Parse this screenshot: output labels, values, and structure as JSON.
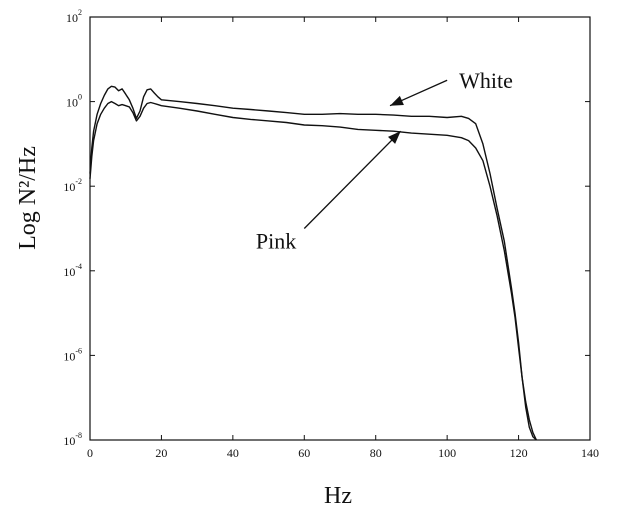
{
  "chart_data": {
    "type": "line",
    "title": "",
    "xlabel": "Hz",
    "ylabel": "Log N²/Hz",
    "xlim": [
      0,
      140
    ],
    "ylim": [
      1e-08,
      100
    ],
    "y_scale": "log",
    "x_ticks": [
      "0",
      "20",
      "40",
      "60",
      "80",
      "100",
      "120",
      "140"
    ],
    "y_ticks": [
      {
        "base": "10",
        "exp": "-8",
        "value": 1e-08
      },
      {
        "base": "10",
        "exp": "-6",
        "value": 1e-06
      },
      {
        "base": "10",
        "exp": "-4",
        "value": 0.0001
      },
      {
        "base": "10",
        "exp": "-2",
        "value": 0.01
      },
      {
        "base": "10",
        "exp": "0",
        "value": 1
      },
      {
        "base": "10",
        "exp": "2",
        "value": 100
      }
    ],
    "grid": false,
    "series": [
      {
        "name": "White",
        "x": [
          0,
          0.5,
          1,
          2,
          3,
          4,
          5,
          6,
          7,
          8,
          9,
          10,
          11,
          12,
          13,
          14,
          15,
          16,
          17,
          18,
          19,
          20,
          25,
          30,
          35,
          40,
          45,
          50,
          55,
          60,
          65,
          70,
          75,
          80,
          85,
          90,
          95,
          100,
          104,
          106,
          108,
          110,
          112,
          114,
          116,
          118,
          119,
          120,
          121,
          122,
          123,
          124,
          125
        ],
        "y": [
          0.02,
          0.08,
          0.2,
          0.5,
          0.9,
          1.4,
          2.0,
          2.3,
          2.2,
          1.8,
          2.0,
          1.5,
          1.1,
          0.7,
          0.4,
          0.6,
          1.3,
          1.9,
          2.0,
          1.6,
          1.3,
          1.1,
          1.0,
          0.9,
          0.8,
          0.7,
          0.65,
          0.6,
          0.55,
          0.5,
          0.5,
          0.52,
          0.5,
          0.5,
          0.48,
          0.45,
          0.45,
          0.42,
          0.45,
          0.4,
          0.3,
          0.1,
          0.02,
          0.003,
          0.0005,
          4e-05,
          1e-05,
          2e-06,
          3e-07,
          6e-08,
          2e-08,
          1.2e-08,
          1e-08
        ]
      },
      {
        "name": "Pink",
        "x": [
          0,
          0.5,
          1,
          2,
          3,
          4,
          5,
          6,
          7,
          8,
          9,
          10,
          11,
          12,
          13,
          14,
          15,
          16,
          17,
          18,
          19,
          20,
          25,
          30,
          35,
          40,
          45,
          50,
          55,
          60,
          65,
          70,
          75,
          80,
          85,
          90,
          95,
          100,
          104,
          106,
          108,
          110,
          112,
          114,
          116,
          118,
          119,
          120,
          121,
          122,
          123,
          124,
          125
        ],
        "y": [
          0.015,
          0.05,
          0.12,
          0.3,
          0.5,
          0.7,
          0.9,
          1.0,
          0.9,
          0.8,
          0.85,
          0.8,
          0.75,
          0.55,
          0.35,
          0.45,
          0.7,
          0.9,
          0.95,
          0.9,
          0.85,
          0.8,
          0.7,
          0.6,
          0.5,
          0.42,
          0.38,
          0.35,
          0.32,
          0.28,
          0.27,
          0.25,
          0.22,
          0.21,
          0.2,
          0.18,
          0.17,
          0.16,
          0.14,
          0.12,
          0.08,
          0.04,
          0.01,
          0.002,
          0.0003,
          3e-05,
          8e-06,
          1.5e-06,
          3e-07,
          8e-08,
          3e-08,
          1.5e-08,
          1e-08
        ]
      }
    ],
    "annotations": [
      {
        "text": "White",
        "target_series": "White",
        "arrow_tail": [
          100,
          3.2
        ],
        "arrow_head": [
          84,
          0.8
        ]
      },
      {
        "text": "Pink",
        "target_series": "Pink",
        "arrow_tail": [
          60,
          0.001
        ],
        "arrow_head": [
          87,
          0.2
        ]
      }
    ]
  }
}
